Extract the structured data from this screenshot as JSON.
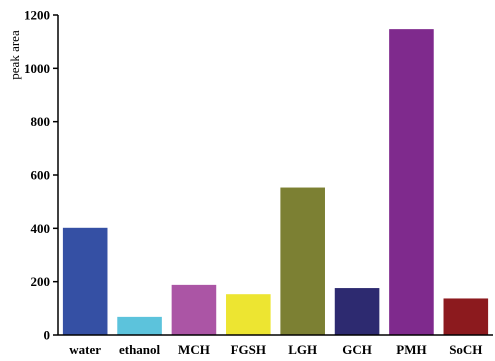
{
  "chart_data": {
    "type": "bar",
    "title": "",
    "xlabel": "",
    "ylabel": "peak area",
    "ylim": [
      0,
      1200
    ],
    "yticks": [
      0,
      200,
      400,
      600,
      800,
      1000,
      1200
    ],
    "grid": false,
    "legend": "none",
    "categories": [
      "water",
      "ethanol",
      "MCH",
      "FGSH",
      "LGH",
      "GCH",
      "PMH",
      "SoCH"
    ],
    "values": [
      402,
      68,
      188,
      153,
      553,
      176,
      1147,
      137
    ],
    "colors": [
      "#3550A4",
      "#5CC3DC",
      "#AB55A5",
      "#EDE531",
      "#7C8033",
      "#2D2A70",
      "#7F2A8D",
      "#8C1A1E"
    ]
  }
}
